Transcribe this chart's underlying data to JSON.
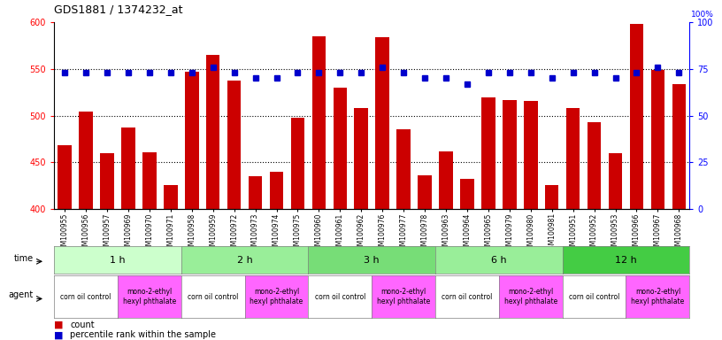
{
  "title": "GDS1881 / 1374232_at",
  "gsm_labels": [
    "GSM100955",
    "GSM100956",
    "GSM100957",
    "GSM100969",
    "GSM100970",
    "GSM100971",
    "GSM100958",
    "GSM100959",
    "GSM100972",
    "GSM100973",
    "GSM100974",
    "GSM100975",
    "GSM100960",
    "GSM100961",
    "GSM100962",
    "GSM100976",
    "GSM100977",
    "GSM100978",
    "GSM100963",
    "GSM100964",
    "GSM100965",
    "GSM100979",
    "GSM100980",
    "GSM100981",
    "GSM100951",
    "GSM100952",
    "GSM100953",
    "GSM100966",
    "GSM100967",
    "GSM100968"
  ],
  "bar_values": [
    468,
    504,
    460,
    487,
    461,
    426,
    547,
    565,
    537,
    435,
    440,
    498,
    585,
    530,
    508,
    584,
    485,
    436,
    462,
    432,
    519,
    517,
    516,
    426,
    508,
    493,
    460,
    598,
    549,
    534
  ],
  "percentile_values": [
    73,
    73,
    73,
    73,
    73,
    73,
    73,
    76,
    73,
    70,
    70,
    73,
    73,
    73,
    73,
    76,
    73,
    70,
    70,
    67,
    73,
    73,
    73,
    70,
    73,
    73,
    70,
    73,
    76,
    73
  ],
  "bar_color": "#cc0000",
  "percentile_color": "#0000cc",
  "ylim_left": [
    400,
    600
  ],
  "ylim_right": [
    0,
    100
  ],
  "yticks_left": [
    400,
    450,
    500,
    550,
    600
  ],
  "yticks_right": [
    0,
    25,
    50,
    75,
    100
  ],
  "time_groups": [
    {
      "label": "1 h",
      "start": 0,
      "end": 6,
      "color": "#ccffcc"
    },
    {
      "label": "2 h",
      "start": 6,
      "end": 12,
      "color": "#99ee99"
    },
    {
      "label": "3 h",
      "start": 12,
      "end": 18,
      "color": "#77dd77"
    },
    {
      "label": "6 h",
      "start": 18,
      "end": 24,
      "color": "#99ee99"
    },
    {
      "label": "12 h",
      "start": 24,
      "end": 30,
      "color": "#44cc44"
    }
  ],
  "agent_groups": [
    {
      "label": "corn oil control",
      "start": 0,
      "end": 3,
      "color": "#ffffff"
    },
    {
      "label": "mono-2-ethyl\nhexyl phthalate",
      "start": 3,
      "end": 6,
      "color": "#ff66ff"
    },
    {
      "label": "corn oil control",
      "start": 6,
      "end": 9,
      "color": "#ffffff"
    },
    {
      "label": "mono-2-ethyl\nhexyl phthalate",
      "start": 9,
      "end": 12,
      "color": "#ff66ff"
    },
    {
      "label": "corn oil control",
      "start": 12,
      "end": 15,
      "color": "#ffffff"
    },
    {
      "label": "mono-2-ethyl\nhexyl phthalate",
      "start": 15,
      "end": 18,
      "color": "#ff66ff"
    },
    {
      "label": "corn oil control",
      "start": 18,
      "end": 21,
      "color": "#ffffff"
    },
    {
      "label": "mono-2-ethyl\nhexyl phthalate",
      "start": 21,
      "end": 24,
      "color": "#ff66ff"
    },
    {
      "label": "corn oil control",
      "start": 24,
      "end": 27,
      "color": "#ffffff"
    },
    {
      "label": "mono-2-ethyl\nhexyl phthalate",
      "start": 27,
      "end": 30,
      "color": "#ff66ff"
    }
  ],
  "legend_count_color": "#cc0000",
  "legend_percentile_color": "#0000cc",
  "background_color": "#ffffff",
  "fig_width": 8.16,
  "fig_height": 3.84,
  "dpi": 100
}
